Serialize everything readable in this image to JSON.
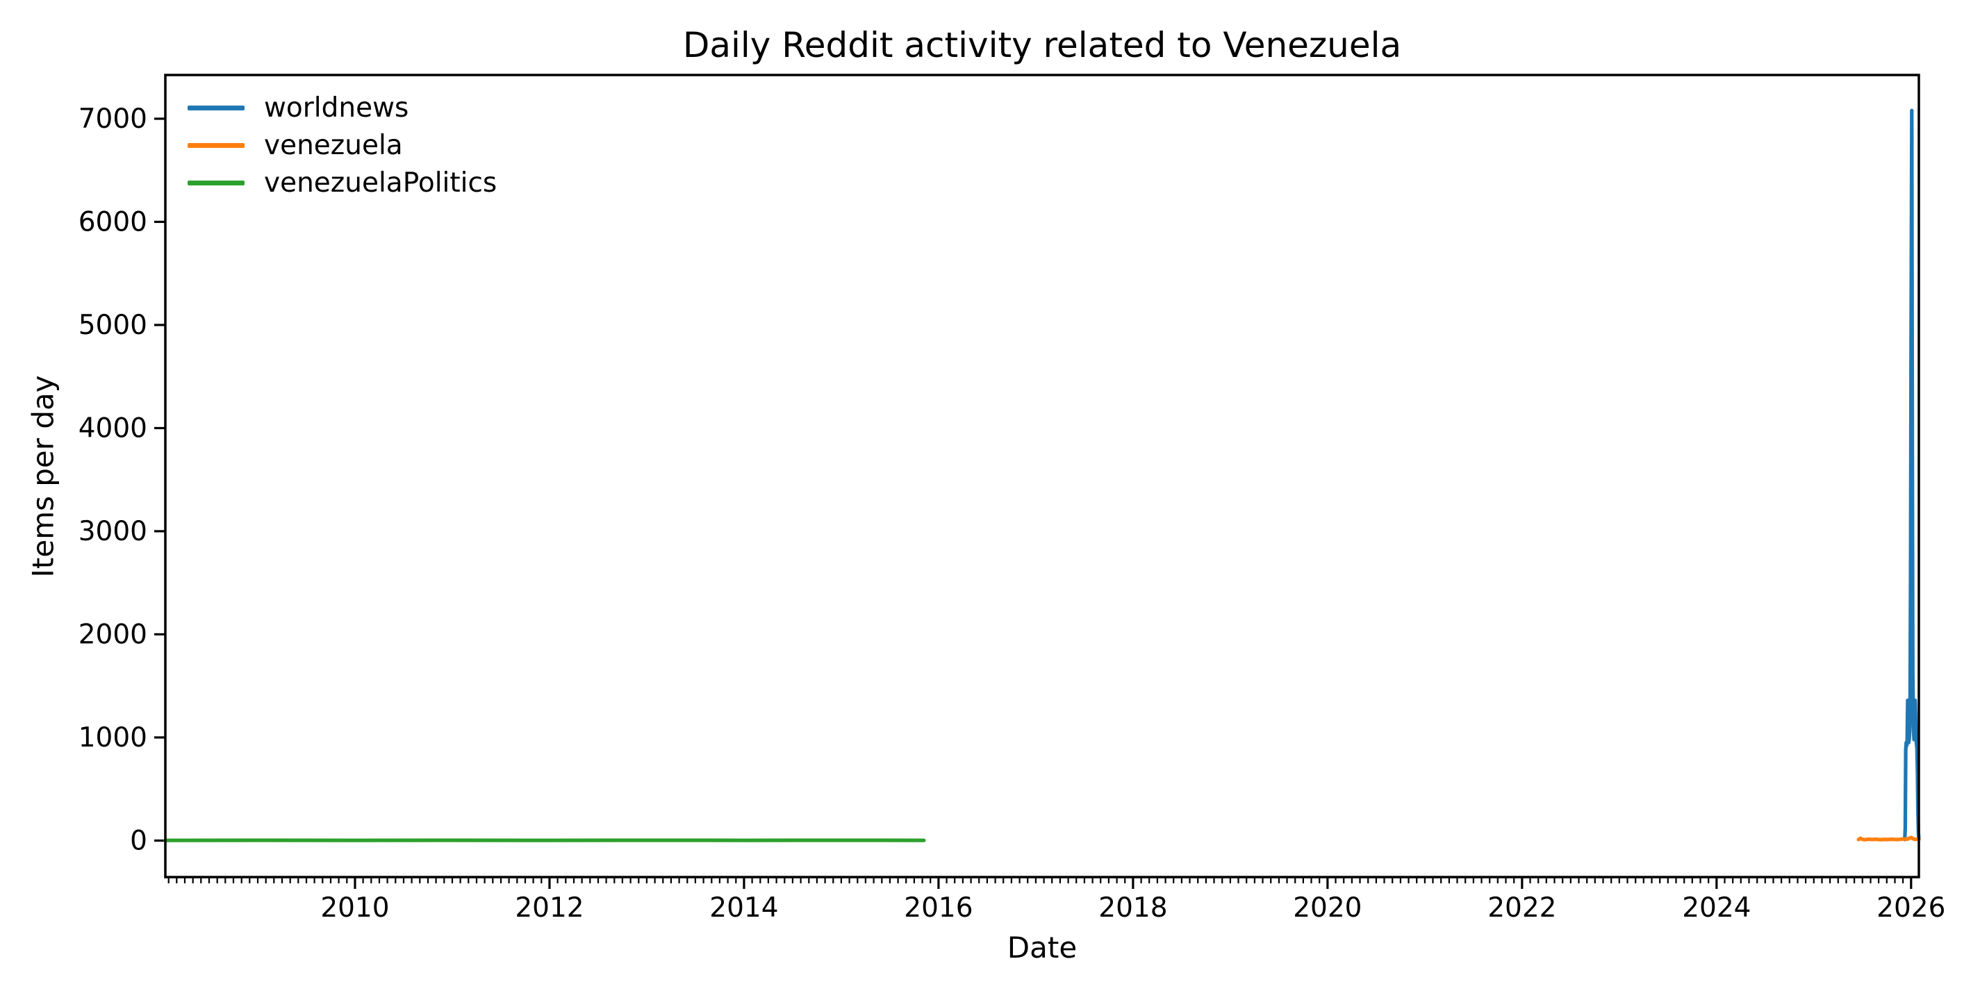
{
  "chart_data": {
    "type": "line",
    "title": "Daily Reddit activity related to Venezuela",
    "xlabel": "Date",
    "ylabel": "Items per day",
    "grid": false,
    "legend": {
      "position": "upper left",
      "frame": false
    },
    "x_axis": {
      "unit": "decimal_year",
      "min": 2008.05,
      "max": 2026.08,
      "major_ticks": [
        2010,
        2012,
        2014,
        2016,
        2018,
        2020,
        2022,
        2024,
        2026
      ],
      "minor_ticks": "monthly"
    },
    "y_axis": {
      "min": -354,
      "max": 7424,
      "ticks": [
        0,
        1000,
        2000,
        3000,
        4000,
        5000,
        6000,
        7000
      ]
    },
    "series": [
      {
        "name": "worldnews",
        "color": "#1f77b4",
        "points": [
          [
            2025.935,
            10
          ],
          [
            2025.94,
            120
          ],
          [
            2025.945,
            880
          ],
          [
            2025.95,
            950
          ],
          [
            2025.955,
            920
          ],
          [
            2025.96,
            980
          ],
          [
            2025.965,
            1360
          ],
          [
            2025.97,
            1000
          ],
          [
            2025.975,
            950
          ],
          [
            2025.98,
            980
          ],
          [
            2025.985,
            1050
          ],
          [
            2025.99,
            1400
          ],
          [
            2025.995,
            2600
          ],
          [
            2026.0,
            4800
          ],
          [
            2026.007,
            7080
          ],
          [
            2026.013,
            3800
          ],
          [
            2026.018,
            1600
          ],
          [
            2026.024,
            1100
          ],
          [
            2026.03,
            980
          ],
          [
            2026.036,
            1020
          ],
          [
            2026.042,
            1360
          ],
          [
            2026.048,
            1150
          ],
          [
            2026.054,
            950
          ],
          [
            2026.06,
            900
          ],
          [
            2026.066,
            650
          ],
          [
            2026.07,
            300
          ],
          [
            2026.075,
            80
          ],
          [
            2026.08,
            15
          ]
        ]
      },
      {
        "name": "venezuela",
        "color": "#ff7f0e",
        "points": [
          [
            2025.46,
            10
          ],
          [
            2025.48,
            22
          ],
          [
            2025.5,
            12
          ],
          [
            2025.53,
            8
          ],
          [
            2025.56,
            14
          ],
          [
            2025.6,
            10
          ],
          [
            2025.64,
            13
          ],
          [
            2025.68,
            9
          ],
          [
            2025.72,
            12
          ],
          [
            2025.76,
            10
          ],
          [
            2025.8,
            13
          ],
          [
            2025.84,
            10
          ],
          [
            2025.88,
            12
          ],
          [
            2025.92,
            16
          ],
          [
            2025.96,
            14
          ],
          [
            2026.0,
            30
          ],
          [
            2026.02,
            18
          ],
          [
            2026.04,
            12
          ],
          [
            2026.06,
            14
          ],
          [
            2026.08,
            10
          ]
        ]
      },
      {
        "name": "venezuelaPolitics",
        "color": "#2ca02c",
        "points": [
          [
            2008.05,
            2
          ],
          [
            2009.0,
            3
          ],
          [
            2010.0,
            2
          ],
          [
            2011.0,
            3
          ],
          [
            2012.0,
            2
          ],
          [
            2013.0,
            3
          ],
          [
            2014.0,
            2
          ],
          [
            2015.0,
            3
          ],
          [
            2015.85,
            2
          ]
        ]
      }
    ],
    "colors": {
      "spine": "#000000",
      "text": "#000000",
      "background": "#ffffff"
    }
  }
}
